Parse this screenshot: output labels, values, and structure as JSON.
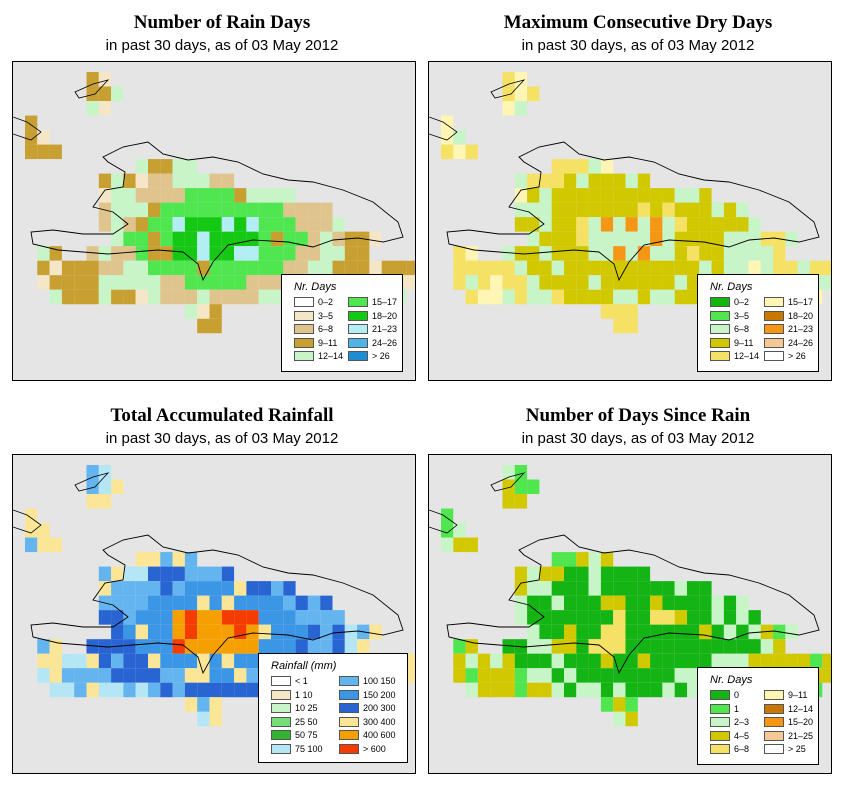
{
  "date": "03 May 2012",
  "panels": [
    {
      "id": "rain-days",
      "title": "Number of Rain Days",
      "subtitle": "in past 30 days, as of  03 May 2012",
      "legend": {
        "title": "Nr. Days",
        "cols": 2,
        "entries": [
          {
            "label": "0–2",
            "color": "#ffffff"
          },
          {
            "label": "3–5",
            "color": "#f5e6c8"
          },
          {
            "label": "6–8",
            "color": "#e0c48e"
          },
          {
            "label": "9–11",
            "color": "#c8a032"
          },
          {
            "label": "12–14",
            "color": "#c8f5c8"
          },
          {
            "label": "15–17",
            "color": "#50e650"
          },
          {
            "label": "18–20",
            "color": "#14c814"
          },
          {
            "label": "21–23",
            "color": "#b4eef5"
          },
          {
            "label": "24–26",
            "color": "#50b4e6"
          },
          {
            "label": "> 26",
            "color": "#1e8cd2"
          }
        ]
      },
      "scheme": {
        "base": "#e0c48e",
        "center": "#14c814",
        "mid": "#50e650",
        "edge": "#c8f5c8",
        "alt": "#c8a032",
        "accent": "#b4eef5",
        "accent2": "#f5e6c8"
      }
    },
    {
      "id": "dry-days",
      "title": "Maximum Consecutive Dry Days",
      "subtitle": "in past 30 days, as of  03 May 2012",
      "legend": {
        "title": "Nr. Days",
        "cols": 2,
        "entries": [
          {
            "label": "0–2",
            "color": "#14b414"
          },
          {
            "label": "3–5",
            "color": "#50e650"
          },
          {
            "label": "6–8",
            "color": "#c8f5c8"
          },
          {
            "label": "9–11",
            "color": "#d2c800"
          },
          {
            "label": "12–14",
            "color": "#f5e164"
          },
          {
            "label": "15–17",
            "color": "#fff5b4"
          },
          {
            "label": "18–20",
            "color": "#c87800"
          },
          {
            "label": "21–23",
            "color": "#f59614"
          },
          {
            "label": "24–26",
            "color": "#f5c896"
          },
          {
            "label": "> 26",
            "color": "#ffffff"
          }
        ]
      },
      "scheme": {
        "base": "#d2c800",
        "center": "#c8f5c8",
        "mid": "#d2c800",
        "edge": "#c8f5c8",
        "alt": "#f5e164",
        "accent": "#f59614",
        "accent2": "#fff5b4"
      }
    },
    {
      "id": "rainfall",
      "title": "Total Accumulated Rainfall",
      "subtitle": "in past 30 days, as of  03 May 2012",
      "legend": {
        "title": "Rainfall (mm)",
        "cols": 2,
        "entries": [
          {
            "label": "< 1",
            "color": "#ffffff"
          },
          {
            "label": "1    10",
            "color": "#f5e6c8"
          },
          {
            "label": "10    25",
            "color": "#c8f5c8"
          },
          {
            "label": "25    50",
            "color": "#78dc78"
          },
          {
            "label": "50    75",
            "color": "#32b432"
          },
          {
            "label": "75   100",
            "color": "#b4e6f5"
          },
          {
            "label": "100   150",
            "color": "#64b4f0"
          },
          {
            "label": "150   200",
            "color": "#3c96e6"
          },
          {
            "label": "200   300",
            "color": "#2864d2"
          },
          {
            "label": "300   400",
            "color": "#fae696"
          },
          {
            "label": "400   600",
            "color": "#f5a000"
          },
          {
            "label": "> 600",
            "color": "#f53c00"
          }
        ]
      },
      "scheme": {
        "base": "#2864d2",
        "center": "#f5a000",
        "mid": "#3c96e6",
        "edge": "#64b4f0",
        "alt": "#fae696",
        "accent": "#f53c00",
        "accent2": "#b4e6f5"
      }
    },
    {
      "id": "since-rain",
      "title": "Number of Days Since Rain",
      "subtitle": "in past 30 days, as of  03 May 2012",
      "legend": {
        "title": "Nr. Days",
        "cols": 2,
        "entries": [
          {
            "label": "0",
            "color": "#14b414"
          },
          {
            "label": "1",
            "color": "#50e650"
          },
          {
            "label": "2–3",
            "color": "#c8f5c8"
          },
          {
            "label": "4–5",
            "color": "#d2c800"
          },
          {
            "label": "6–8",
            "color": "#f5e164"
          },
          {
            "label": "9–11",
            "color": "#fff5b4"
          },
          {
            "label": "12–14",
            "color": "#c87800"
          },
          {
            "label": "15–20",
            "color": "#f59614"
          },
          {
            "label": "21–25",
            "color": "#f5c896"
          },
          {
            "label": "> 25",
            "color": "#ffffff"
          }
        ]
      },
      "scheme": {
        "base": "#14b414",
        "center": "#14b414",
        "mid": "#14b414",
        "edge": "#c8f5c8",
        "alt": "#d2c800",
        "accent": "#f5e164",
        "accent2": "#50e650"
      }
    }
  ]
}
